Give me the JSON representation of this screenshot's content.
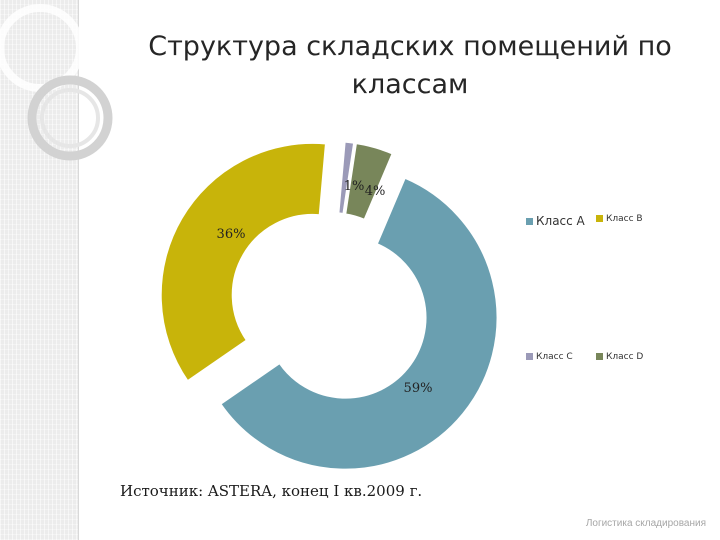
{
  "slide": {
    "title_line1": "Структура складских помещений по",
    "title_line2": "классам",
    "source": "Источник: ASTERA, конец I кв.2009 г.",
    "footer": "Логистика складирования"
  },
  "chart_data": {
    "type": "pie",
    "variant": "doughnut, exploded",
    "categories": [
      "Класс A",
      "Класс B",
      "Класс C",
      "Класс D"
    ],
    "values": [
      59,
      36,
      1,
      4
    ],
    "data_labels": [
      "59%",
      "36%",
      "1%",
      "4%"
    ],
    "colors": [
      "#6a9fb0",
      "#c8b40a",
      "#9b9ab8",
      "#78865a"
    ],
    "legend_placement": "right"
  }
}
